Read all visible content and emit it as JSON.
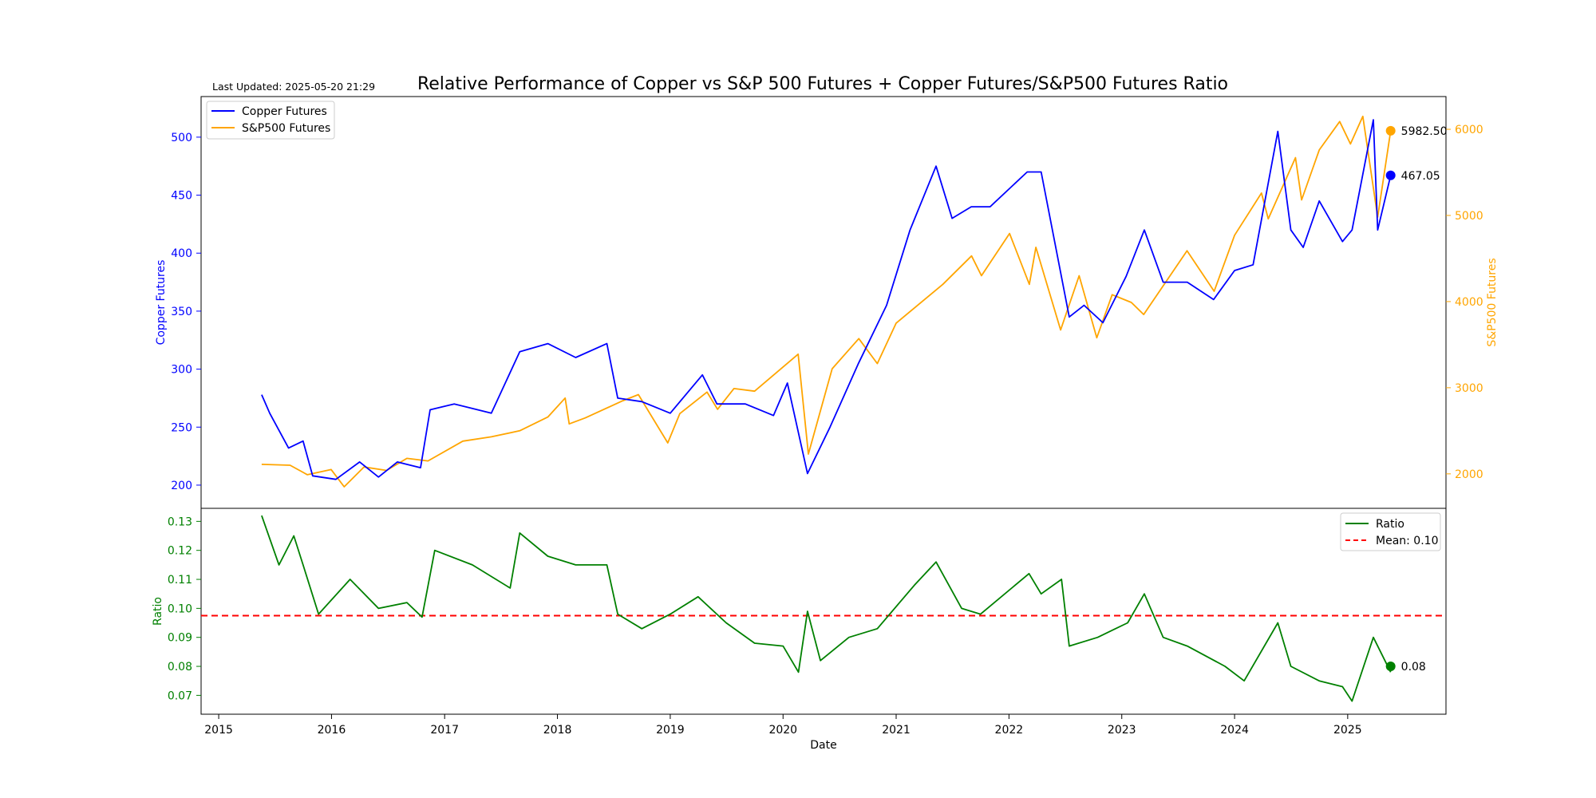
{
  "header": {
    "title": "Relative Performance of Copper vs S&P 500 Futures + Copper Futures/S&P500 Futures Ratio",
    "last_updated": "Last Updated: 2025-05-20 21:29"
  },
  "colors": {
    "copper": "#0000ff",
    "sp500": "#ffa500",
    "ratio": "#008000",
    "mean": "#ff0000",
    "axis": "#000000"
  },
  "chart_data": [
    {
      "type": "line",
      "panel": "top",
      "xlabel": "",
      "ylabel_left": "Copper Futures",
      "ylabel_right": "S&P500 Futures",
      "xlim": [
        "2014-11-05",
        "2025-11-15"
      ],
      "ylim_left": [
        180,
        535
      ],
      "ylim_right": [
        1600,
        6380
      ],
      "yticks_left": [
        200,
        250,
        300,
        350,
        400,
        450,
        500
      ],
      "yticks_right": [
        2000,
        3000,
        4000,
        5000,
        6000
      ],
      "legend": "top-left",
      "series": [
        {
          "name": "Copper Futures",
          "axis": "left",
          "x": [
            "2015-05-20",
            "2015-06-15",
            "2015-08-15",
            "2015-10-01",
            "2015-11-01",
            "2016-01-15",
            "2016-04-01",
            "2016-06-01",
            "2016-08-01",
            "2016-10-15",
            "2016-11-15",
            "2017-02-01",
            "2017-06-01",
            "2017-09-01",
            "2017-12-01",
            "2018-03-01",
            "2018-06-10",
            "2018-07-15",
            "2018-10-01",
            "2019-01-01",
            "2019-04-15",
            "2019-06-01",
            "2019-09-01",
            "2019-12-01",
            "2020-01-15",
            "2020-03-20",
            "2020-06-01",
            "2020-09-01",
            "2020-12-01",
            "2021-02-15",
            "2021-05-10",
            "2021-07-01",
            "2021-09-01",
            "2021-11-01",
            "2022-03-01",
            "2022-04-15",
            "2022-07-15",
            "2022-09-01",
            "2022-11-01",
            "2023-01-15",
            "2023-03-15",
            "2023-05-15",
            "2023-08-01",
            "2023-10-25",
            "2024-01-01",
            "2024-03-01",
            "2024-05-20",
            "2024-07-01",
            "2024-08-10",
            "2024-10-01",
            "2024-12-15",
            "2025-01-15",
            "2025-03-25",
            "2025-04-08",
            "2025-05-20"
          ],
          "y": [
            278,
            262,
            232,
            238,
            208,
            205,
            220,
            207,
            220,
            215,
            265,
            270,
            262,
            315,
            322,
            310,
            322,
            275,
            272,
            262,
            295,
            270,
            270,
            260,
            288,
            210,
            250,
            305,
            355,
            420,
            475,
            430,
            440,
            440,
            470,
            470,
            345,
            355,
            340,
            380,
            420,
            375,
            375,
            360,
            385,
            390,
            505,
            420,
            405,
            445,
            410,
            420,
            515,
            420,
            467.05
          ]
        },
        {
          "name": "S&P500 Futures",
          "axis": "right",
          "x": [
            "2015-05-20",
            "2015-08-20",
            "2015-10-15",
            "2015-12-31",
            "2016-02-11",
            "2016-04-15",
            "2016-06-27",
            "2016-09-01",
            "2016-11-08",
            "2017-03-01",
            "2017-06-01",
            "2017-09-01",
            "2017-12-01",
            "2018-01-26",
            "2018-02-08",
            "2018-04-01",
            "2018-08-01",
            "2018-09-20",
            "2018-12-24",
            "2019-02-01",
            "2019-04-30",
            "2019-06-03",
            "2019-07-26",
            "2019-10-01",
            "2020-02-19",
            "2020-03-23",
            "2020-06-08",
            "2020-09-02",
            "2020-11-01",
            "2021-01-01",
            "2021-06-01",
            "2021-09-02",
            "2021-10-04",
            "2022-01-03",
            "2022-03-08",
            "2022-03-29",
            "2022-06-17",
            "2022-08-16",
            "2022-10-12",
            "2022-12-01",
            "2023-02-01",
            "2023-03-13",
            "2023-07-31",
            "2023-10-27",
            "2024-01-01",
            "2024-03-28",
            "2024-04-19",
            "2024-07-16",
            "2024-08-05",
            "2024-10-01",
            "2024-12-06",
            "2025-01-10",
            "2025-02-19",
            "2025-04-08",
            "2025-05-20"
          ],
          "y": [
            2110,
            2100,
            1990,
            2050,
            1850,
            2080,
            2040,
            2180,
            2150,
            2380,
            2430,
            2500,
            2660,
            2880,
            2580,
            2650,
            2850,
            2920,
            2360,
            2700,
            2950,
            2750,
            2990,
            2960,
            3390,
            2230,
            3220,
            3570,
            3280,
            3750,
            4200,
            4530,
            4300,
            4790,
            4200,
            4630,
            3670,
            4300,
            3580,
            4080,
            3990,
            3850,
            4590,
            4120,
            4770,
            5260,
            4960,
            5670,
            5180,
            5760,
            6090,
            5830,
            6150,
            4980,
            5982.5
          ]
        }
      ],
      "end_labels": [
        {
          "series": "Copper Futures",
          "value": 467.05,
          "label": "467.05"
        },
        {
          "series": "S&P500 Futures",
          "value": 5982.5,
          "label": "5982.50"
        }
      ]
    },
    {
      "type": "line",
      "panel": "bottom",
      "xlabel": "Date",
      "ylabel": "Ratio",
      "xlim": [
        "2014-11-05",
        "2025-11-15"
      ],
      "ylim": [
        0.0635,
        0.1345
      ],
      "yticks": [
        0.07,
        0.08,
        0.09,
        0.1,
        0.11,
        0.12,
        0.13
      ],
      "xticks": [
        "2015",
        "2016",
        "2017",
        "2018",
        "2019",
        "2020",
        "2021",
        "2022",
        "2023",
        "2024",
        "2025"
      ],
      "legend": "top-right",
      "series": [
        {
          "name": "Ratio",
          "x": [
            "2015-05-20",
            "2015-07-15",
            "2015-09-01",
            "2015-10-01",
            "2015-11-20",
            "2016-03-01",
            "2016-06-01",
            "2016-09-01",
            "2016-10-20",
            "2016-11-30",
            "2017-04-01",
            "2017-08-01",
            "2017-09-01",
            "2017-12-01",
            "2018-03-01",
            "2018-06-10",
            "2018-07-15",
            "2018-10-01",
            "2019-01-01",
            "2019-04-01",
            "2019-07-01",
            "2019-10-01",
            "2020-01-01",
            "2020-02-20",
            "2020-03-20",
            "2020-05-01",
            "2020-08-01",
            "2020-11-01",
            "2021-03-01",
            "2021-05-10",
            "2021-08-01",
            "2021-10-01",
            "2022-03-07",
            "2022-04-15",
            "2022-06-20",
            "2022-07-15",
            "2022-10-15",
            "2023-01-20",
            "2023-03-15",
            "2023-05-15",
            "2023-08-01",
            "2023-12-01",
            "2024-02-01",
            "2024-05-20",
            "2024-07-01",
            "2024-10-01",
            "2024-12-15",
            "2025-01-15",
            "2025-03-25",
            "2025-05-20"
          ],
          "y": [
            0.132,
            0.115,
            0.125,
            0.115,
            0.098,
            0.11,
            0.1,
            0.102,
            0.097,
            0.12,
            0.115,
            0.107,
            0.126,
            0.118,
            0.115,
            0.115,
            0.098,
            0.093,
            0.098,
            0.104,
            0.095,
            0.088,
            0.087,
            0.078,
            0.099,
            0.082,
            0.09,
            0.093,
            0.108,
            0.116,
            0.1,
            0.098,
            0.112,
            0.105,
            0.11,
            0.087,
            0.09,
            0.095,
            0.105,
            0.09,
            0.087,
            0.08,
            0.075,
            0.095,
            0.08,
            0.075,
            0.073,
            0.068,
            0.09,
            0.078
          ]
        },
        {
          "name": "Mean: 0.10",
          "style": "dashed",
          "value": 0.0975
        }
      ],
      "end_labels": [
        {
          "series": "Ratio",
          "value": 0.08,
          "label": "0.08"
        }
      ]
    }
  ]
}
